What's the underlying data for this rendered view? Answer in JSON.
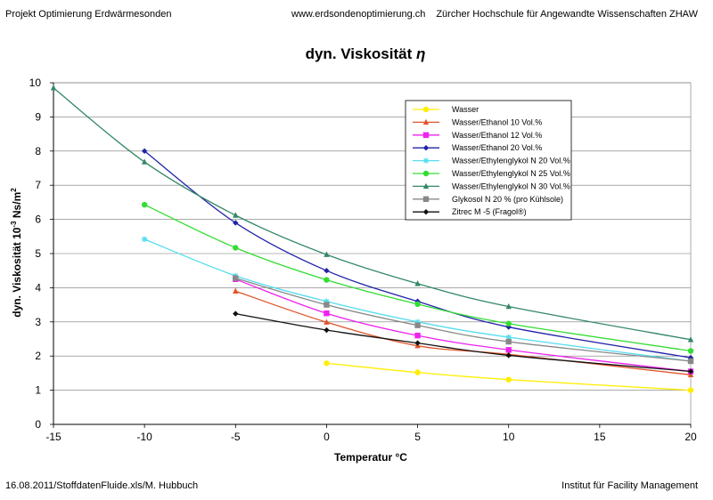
{
  "header": {
    "left": "Projekt Optimierung Erdwärmesonden",
    "center": "www.erdsondenoptimierung.ch",
    "right": "Zürcher Hochschule für Angewandte Wissenschaften ZHAW"
  },
  "footer": {
    "left": "16.08.2011/StoffdatenFluide.xls/M. Hubbuch",
    "right": "Institut für Facility Management"
  },
  "chart_data": {
    "type": "line",
    "title": "dyn. Viskosität",
    "title_symbol": "η",
    "xlabel": "Temperatur °C",
    "ylabel_main": "dyn. Viskosität  10",
    "ylabel_exp": "-3",
    "ylabel_unit": " Ns/m",
    "ylabel_unit_exp": "2",
    "xlim": [
      -15,
      20
    ],
    "ylim": [
      0,
      10
    ],
    "x_ticks": [
      -15,
      -10,
      -5,
      0,
      5,
      10,
      15,
      20
    ],
    "y_ticks": [
      0,
      1,
      2,
      3,
      4,
      5,
      6,
      7,
      8,
      9,
      10
    ],
    "grid": "horizontal",
    "legend_position": "top-right",
    "series": [
      {
        "name": "Wasser",
        "color": "#ffee00",
        "marker": "circle",
        "x": [
          0,
          5,
          10,
          20
        ],
        "y": [
          1.79,
          1.52,
          1.31,
          1.0
        ]
      },
      {
        "name": "Wasser/Ethanol 10 Vol.%",
        "color": "#e0542a",
        "marker": "triangle",
        "x": [
          -5,
          0,
          5,
          10,
          20
        ],
        "y": [
          3.9,
          2.99,
          2.3,
          2.05,
          1.45
        ]
      },
      {
        "name": "Wasser/Ethanol 12 Vol.%",
        "color": "#ee22ee",
        "marker": "square",
        "x": [
          -5,
          0,
          5,
          10,
          20
        ],
        "y": [
          4.25,
          3.25,
          2.6,
          2.18,
          1.55
        ]
      },
      {
        "name": "Wasser/Ethanol 20 Vol.%",
        "color": "#2222aa",
        "marker": "diamond",
        "x": [
          -10,
          -5,
          0,
          5,
          10,
          20
        ],
        "y": [
          8.0,
          5.9,
          4.5,
          3.6,
          2.85,
          1.95
        ]
      },
      {
        "name": "Wasser/Ethylenglykol N 20 Vol.%",
        "color": "#55ddee",
        "marker": "star",
        "x": [
          -10,
          -5,
          0,
          5,
          10,
          20
        ],
        "y": [
          5.42,
          4.35,
          3.6,
          3.0,
          2.55,
          1.85
        ]
      },
      {
        "name": "Wasser/Ethylenglykol N 25 Vol.%",
        "color": "#33dd33",
        "marker": "circle",
        "x": [
          -10,
          -5,
          0,
          5,
          10,
          20
        ],
        "y": [
          6.43,
          5.17,
          4.23,
          3.52,
          2.95,
          2.15
        ]
      },
      {
        "name": "Wasser/Ethylenglykol N 30 Vol.%",
        "color": "#338866",
        "marker": "triangle",
        "x": [
          -15,
          -10,
          -5,
          0,
          5,
          10,
          20
        ],
        "y": [
          9.85,
          7.68,
          6.12,
          4.97,
          4.12,
          3.45,
          2.48
        ]
      },
      {
        "name": "Glykosol N 20 % (pro Kühlsole)",
        "color": "#888888",
        "marker": "square",
        "x": [
          -5,
          0,
          5,
          10,
          20
        ],
        "y": [
          4.28,
          3.5,
          2.9,
          2.42,
          1.85
        ]
      },
      {
        "name": "Zitrec M -5 (Fragol®)",
        "color": "#111111",
        "marker": "diamond",
        "x": [
          -5,
          0,
          5,
          10,
          20
        ],
        "y": [
          3.24,
          2.76,
          2.38,
          2.02,
          1.55
        ]
      }
    ]
  }
}
